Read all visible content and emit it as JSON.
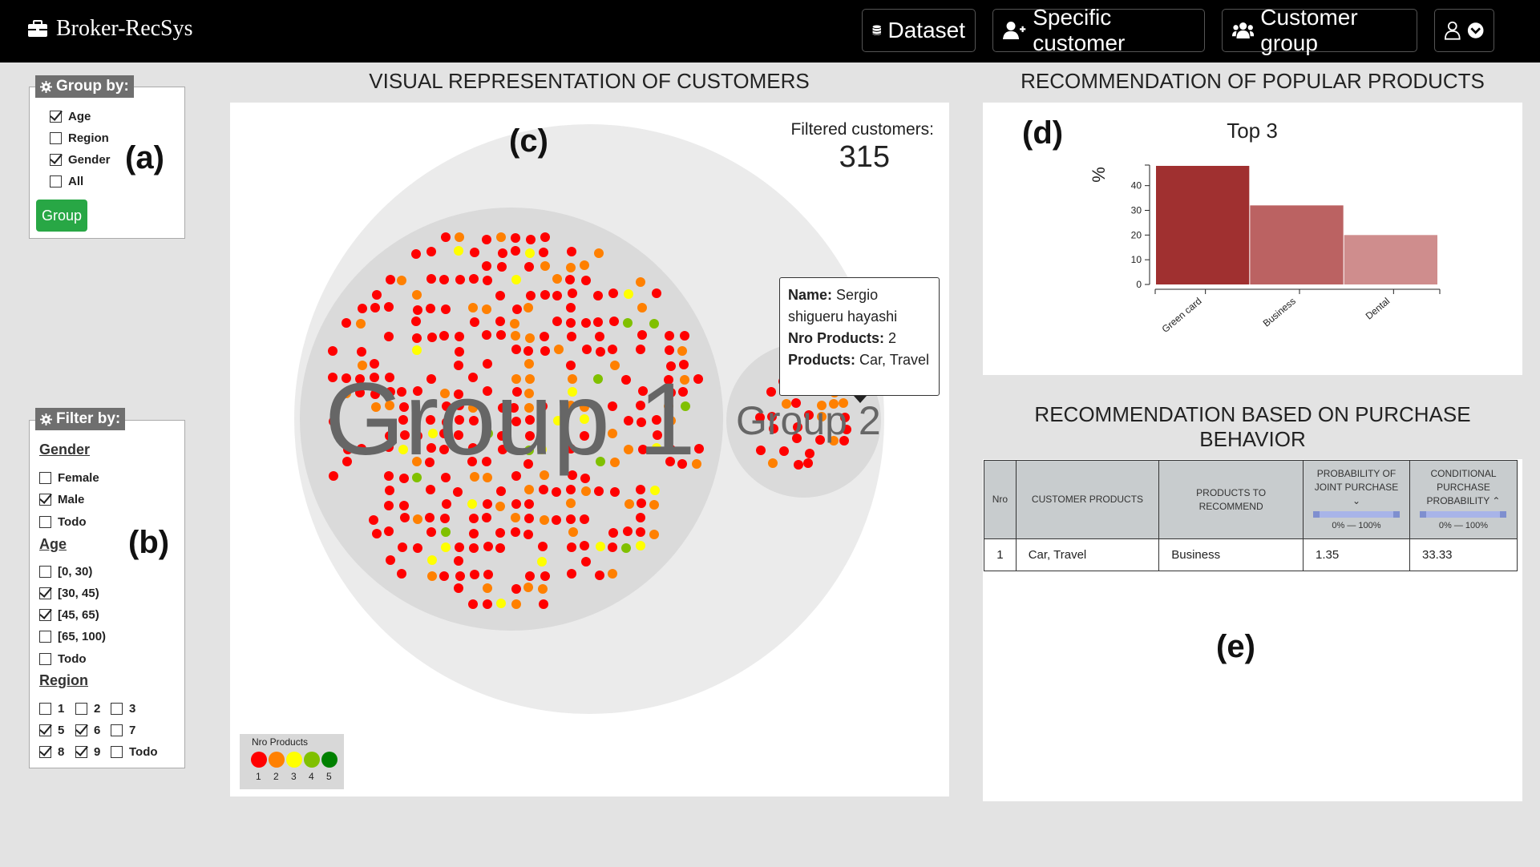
{
  "app": {
    "brand": "Broker-RecSys"
  },
  "nav": {
    "dataset": "Dataset",
    "specific_customer": "Specific customer",
    "customer_group": "Customer group"
  },
  "group_by": {
    "title": "Group by:",
    "options": [
      {
        "label": "Age",
        "checked": true
      },
      {
        "label": "Region",
        "checked": false
      },
      {
        "label": "Gender",
        "checked": true
      },
      {
        "label": "All",
        "checked": false
      }
    ],
    "button": "Group",
    "tag": "(a)"
  },
  "filter_by": {
    "title": "Filter by:",
    "tag": "(b)",
    "gender": {
      "heading": "Gender",
      "options": [
        {
          "label": "Female",
          "checked": false
        },
        {
          "label": "Male",
          "checked": true
        },
        {
          "label": "Todo",
          "checked": false
        }
      ]
    },
    "age": {
      "heading": "Age",
      "options": [
        {
          "label": "[0, 30)",
          "checked": false
        },
        {
          "label": "[30, 45)",
          "checked": true
        },
        {
          "label": "[45, 65)",
          "checked": true
        },
        {
          "label": "[65, 100)",
          "checked": false
        },
        {
          "label": "Todo",
          "checked": false
        }
      ]
    },
    "region": {
      "heading": "Region",
      "options": [
        {
          "label": "1",
          "checked": false
        },
        {
          "label": "2",
          "checked": false
        },
        {
          "label": "3",
          "checked": false
        },
        {
          "label": "5",
          "checked": true
        },
        {
          "label": "6",
          "checked": true
        },
        {
          "label": "7",
          "checked": false
        },
        {
          "label": "8",
          "checked": true
        },
        {
          "label": "9",
          "checked": true
        },
        {
          "label": "Todo",
          "checked": false
        }
      ]
    }
  },
  "customers_view": {
    "title": "VISUAL REPRESENTATION OF CUSTOMERS",
    "tag": "(c)",
    "filtered_label": "Filtered customers:",
    "filtered_count": "315",
    "groups": [
      {
        "label": "Group 1"
      },
      {
        "label": "Group 2"
      }
    ],
    "tooltip": {
      "name_label": "Name:",
      "name_value": "Sergio shigueru hayashi",
      "nro_label": "Nro Products:",
      "nro_value": "2",
      "products_label": "Products:",
      "products_value": "Car, Travel"
    },
    "legend": {
      "title": "Nro Products",
      "items": [
        {
          "label": "1",
          "color": "#ff0000"
        },
        {
          "label": "2",
          "color": "#ff8000"
        },
        {
          "label": "3",
          "color": "#ffff00"
        },
        {
          "label": "4",
          "color": "#80c000"
        },
        {
          "label": "5",
          "color": "#008000"
        }
      ]
    }
  },
  "popular": {
    "title": "RECOMMENDATION OF POPULAR PRODUCTS",
    "tag": "(d)"
  },
  "chart_data": {
    "type": "bar",
    "title": "Top 3",
    "ylabel": "%",
    "xlabel": "",
    "categories": [
      "Green card",
      "Business",
      "Dental"
    ],
    "values": [
      48,
      32,
      20
    ],
    "ylim": [
      0,
      48
    ],
    "yticks": [
      0,
      10,
      20,
      30,
      40
    ],
    "colors": [
      "#a03030",
      "#bb6262",
      "#cf8d8d"
    ]
  },
  "behavior": {
    "title_line1": "RECOMMENDATION BASED ON PURCHASE",
    "title_line2": "BEHAVIOR",
    "tag": "(e)",
    "columns": {
      "nro": "Nro",
      "customer_products": "CUSTOMER PRODUCTS",
      "to_recommend": "PRODUCTS TO RECOMMEND",
      "joint": "PROBABILITY OF JOINT PURCHASE",
      "conditional": "CONDITIONAL PURCHASE PROBABILITY",
      "range_text": "0% — 100%"
    },
    "rows": [
      {
        "nro": "1",
        "customer_products": "Car, Travel",
        "to_recommend": "Business",
        "joint": "1.35",
        "conditional": "33.33"
      }
    ]
  }
}
